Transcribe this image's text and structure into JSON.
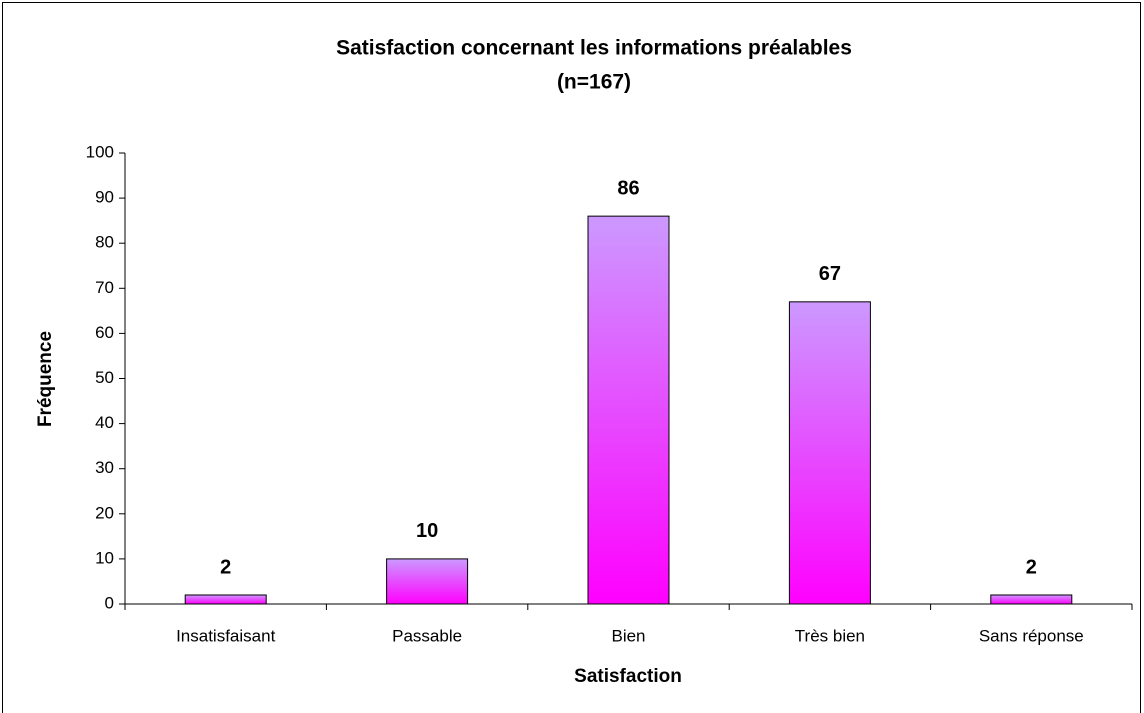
{
  "chart_data": {
    "type": "bar",
    "title": "Satisfaction concernant les informations préalables",
    "subtitle": "(n=167)",
    "x_label": "Satisfaction",
    "y_label": "Fréquence",
    "categories": [
      "Insatisfaisant",
      "Passable",
      "Bien",
      "Très bien",
      "Sans réponse"
    ],
    "values": [
      2,
      10,
      86,
      67,
      2
    ],
    "gradient": [
      "#cc99ff",
      "#ff00ff"
    ],
    "ylim": [
      0,
      100
    ],
    "yticks": [
      0,
      10,
      20,
      30,
      40,
      50,
      60,
      70,
      80,
      90,
      100
    ],
    "grid": false
  }
}
